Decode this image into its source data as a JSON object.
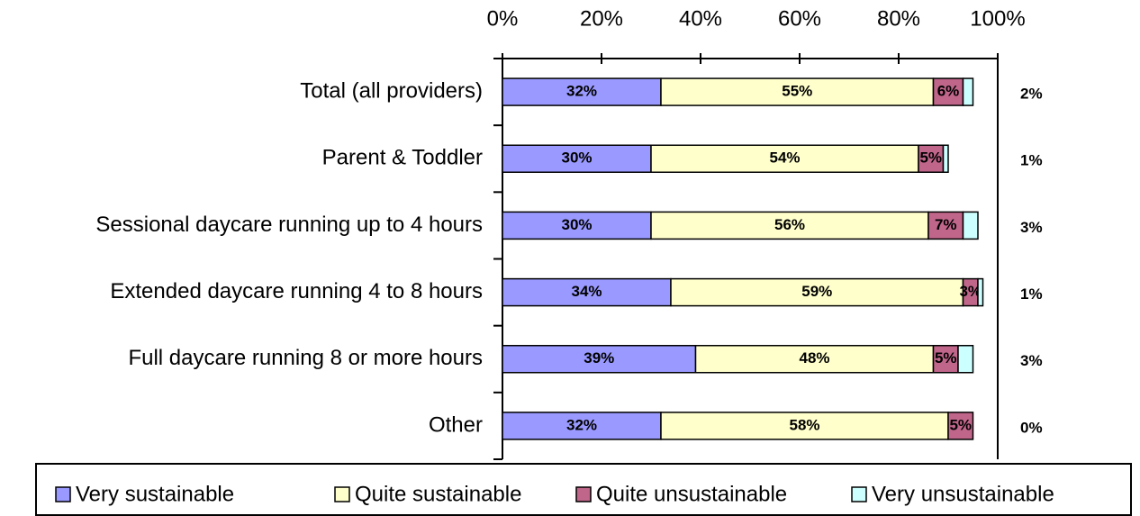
{
  "chart_data": {
    "type": "stacked_bar_horizontal",
    "categories": [
      "Total (all providers)",
      "Parent & Toddler",
      "Sessional daycare running up to 4 hours",
      "Extended daycare running 4 to 8 hours",
      "Full daycare running 8 or more hours",
      "Other"
    ],
    "series": [
      {
        "name": "Very sustainable",
        "color": "#9999ff",
        "values": [
          32,
          30,
          30,
          34,
          39,
          32
        ],
        "value_labels": [
          "32%",
          "30%",
          "30%",
          "34%",
          "39%",
          "32%"
        ]
      },
      {
        "name": "Quite sustainable",
        "color": "#ffffcc",
        "values": [
          55,
          54,
          56,
          59,
          48,
          58
        ],
        "value_labels": [
          "55%",
          "54%",
          "56%",
          "59%",
          "48%",
          "58%"
        ]
      },
      {
        "name": "Quite unsustainable",
        "color": "#c0668a",
        "values": [
          6,
          5,
          7,
          3,
          5,
          5
        ],
        "value_labels": [
          "6%",
          "5%",
          "7%",
          "3%",
          "5%",
          "5%"
        ]
      },
      {
        "name": "Very unsustainable",
        "color": "#ccffff",
        "values": [
          2,
          1,
          3,
          1,
          3,
          0
        ],
        "value_labels": [
          "2%",
          "1%",
          "3%",
          "1%",
          "3%",
          "0%"
        ]
      }
    ],
    "xlim": [
      0,
      100
    ],
    "xticks": [
      {
        "value": 0,
        "label": "0%"
      },
      {
        "value": 20,
        "label": "20%"
      },
      {
        "value": 40,
        "label": "40%"
      },
      {
        "value": 60,
        "label": "60%"
      },
      {
        "value": 80,
        "label": "80%"
      },
      {
        "value": 100,
        "label": "100%"
      }
    ],
    "legend": "bottom"
  }
}
